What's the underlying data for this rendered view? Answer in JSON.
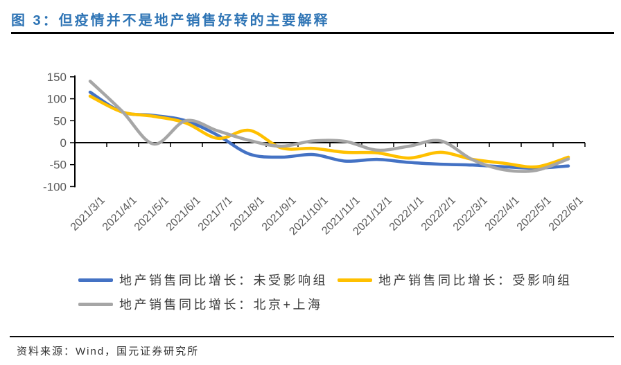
{
  "title": "图 3：但疫情并不是地产销售好转的主要解释",
  "source_note": "资料来源：Wind，国元证券研究所",
  "colors": {
    "title_blue": "#2E74B5",
    "axis_black": "#000000",
    "tick_label_gray": "#595959",
    "series_unaffected_blue": "#4472C4",
    "series_affected_yellow": "#FFC000",
    "series_bjsh_gray": "#A6A6A6"
  },
  "chart_data": {
    "type": "line",
    "smoothed": true,
    "grid": false,
    "legend_position": "bottom",
    "ylim": [
      -100,
      150
    ],
    "yticks": [
      150,
      100,
      50,
      0,
      -50,
      -100
    ],
    "x": [
      "2021/3/1",
      "2021/4/1",
      "2021/5/1",
      "2021/6/1",
      "2021/7/1",
      "2021/8/1",
      "2021/9/1",
      "2021/10/1",
      "2021/11/1",
      "2021/12/1",
      "2022/1/1",
      "2022/2/1",
      "2022/3/1",
      "2022/4/1",
      "2022/5/1",
      "2022/6/1"
    ],
    "series": [
      {
        "name": "地产销售同比增长：未受影响组",
        "color": "#4472C4",
        "values": [
          115,
          70,
          62,
          50,
          17,
          -26,
          -33,
          -27,
          -42,
          -38,
          -45,
          -49,
          -51,
          -55,
          -58,
          -53
        ]
      },
      {
        "name": "地产销售同比增长：受影响组",
        "color": "#FFC000",
        "values": [
          106,
          70,
          60,
          45,
          10,
          28,
          -12,
          -13,
          -22,
          -23,
          -35,
          -22,
          -38,
          -47,
          -55,
          -33
        ]
      },
      {
        "name": "地产销售同比增长：北京+上海",
        "color": "#A6A6A6",
        "values": [
          140,
          72,
          -3,
          50,
          27,
          5,
          -8,
          4,
          3,
          -17,
          -8,
          4,
          -39,
          -62,
          -63,
          -37
        ]
      }
    ]
  }
}
